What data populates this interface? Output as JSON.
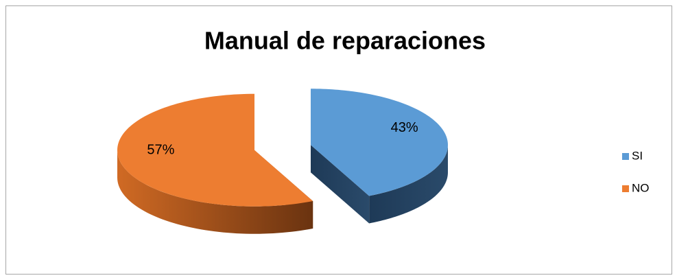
{
  "chart_data": {
    "type": "pie",
    "title": "Manual de reparaciones",
    "categories": [
      "SI",
      "NO"
    ],
    "values": [
      43,
      57
    ],
    "value_labels": [
      "43%",
      "57%"
    ],
    "colors": [
      "#5b9bd5",
      "#ed7d31"
    ],
    "legend": "right"
  }
}
